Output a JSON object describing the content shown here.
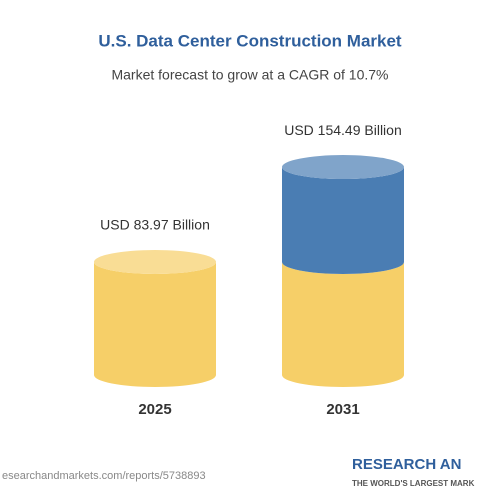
{
  "chart_data": {
    "type": "cylinder",
    "title": "U.S. Data Center Construction Market",
    "subtitle": "Market forecast to grow at a CAGR of 10.7%",
    "categories": [
      "2025",
      "2031"
    ],
    "values": [
      83.97,
      154.49
    ],
    "value_labels": [
      "USD 83.97 Billion",
      "USD 154.49 Billion"
    ],
    "colors": {
      "base": "#f6cf68",
      "growth": "#4a7db3"
    }
  },
  "footer": {
    "url": "esearchandmarkets.com/reports/5738893",
    "brand": "RESEARCH AN",
    "tagline": "THE WORLD'S LARGEST MARK"
  }
}
